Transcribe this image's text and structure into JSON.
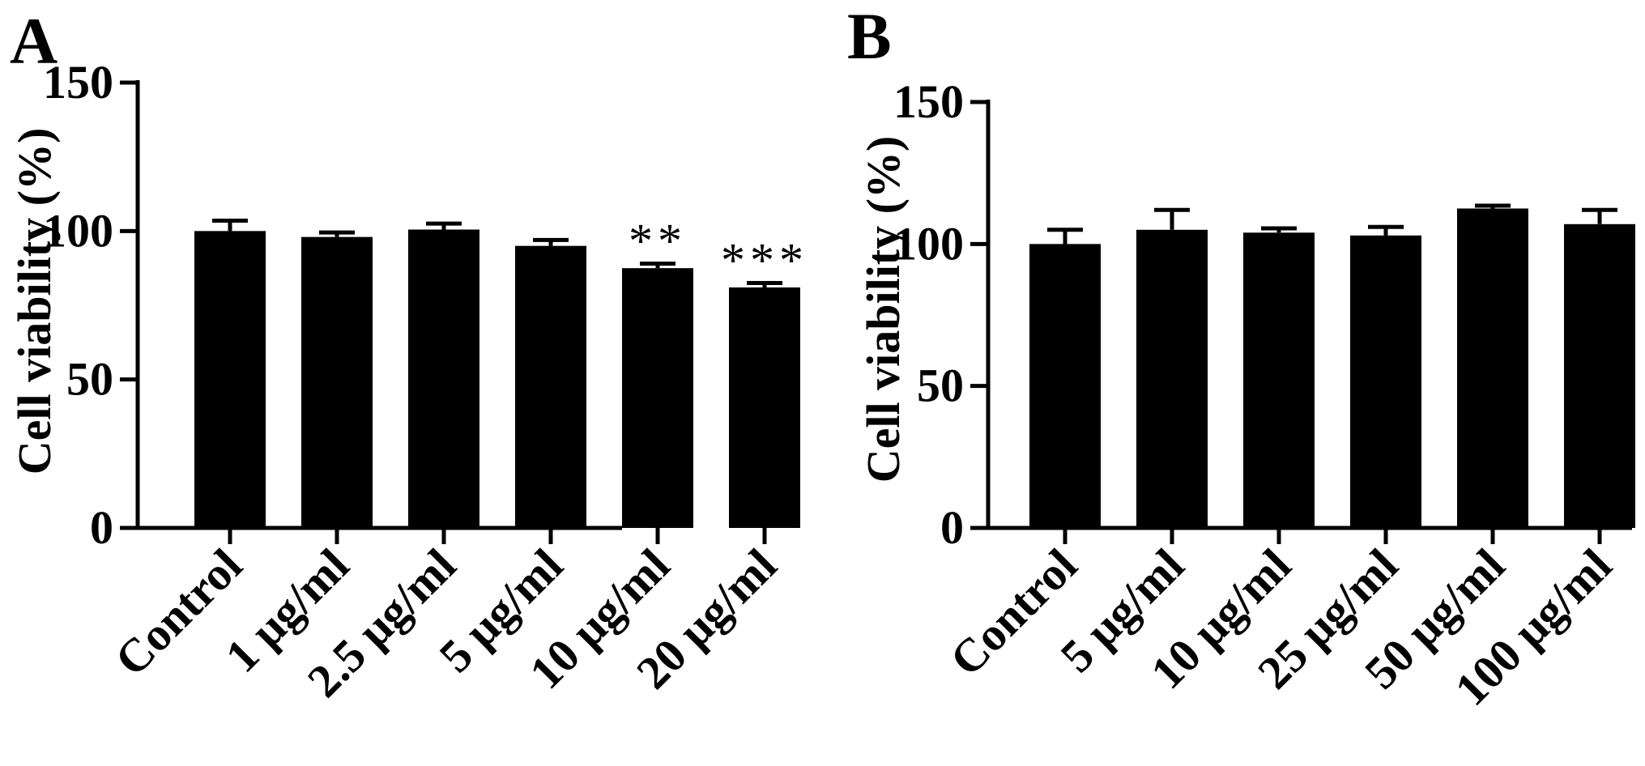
{
  "chart_data": [
    {
      "panel": "A",
      "type": "bar",
      "ylabel": "Cell viability (%)",
      "ylim": [
        0,
        150
      ],
      "yticks": [
        0,
        50,
        100,
        150
      ],
      "categories": [
        "Control",
        "1 μg/ml",
        "2.5 μg/ml",
        "5 μg/ml",
        "10 μg/ml",
        "20 μg/ml"
      ],
      "values": [
        100,
        98,
        100.5,
        95,
        87.5,
        81
      ],
      "errors": [
        3.5,
        1.5,
        2,
        2,
        1.5,
        1.5
      ],
      "annotations": [
        "",
        "",
        "",
        "",
        "**",
        "***"
      ],
      "bar_color": "#000000"
    },
    {
      "panel": "B",
      "type": "bar",
      "ylabel": "Cell viability (%)",
      "ylim": [
        0,
        150
      ],
      "yticks": [
        0,
        50,
        100,
        150
      ],
      "categories": [
        "Control",
        "5 μg/ml",
        "10 μg/ml",
        "25 μg/ml",
        "50 μg/ml",
        "100 μg/ml"
      ],
      "values": [
        100,
        105,
        104,
        103,
        112.5,
        107
      ],
      "errors": [
        5,
        7,
        1.5,
        3,
        1,
        5
      ],
      "annotations": [
        "",
        "",
        "",
        "",
        "",
        ""
      ],
      "bar_color": "#000000"
    }
  ]
}
